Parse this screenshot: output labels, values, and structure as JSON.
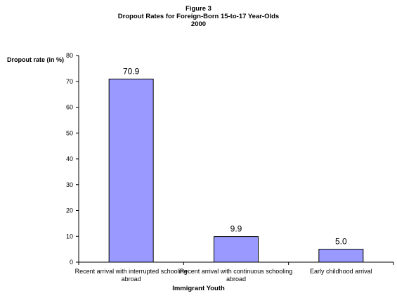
{
  "chart_data": {
    "type": "bar",
    "title_lines": [
      "Figure 3",
      "Dropout Rates for Foreign-Born 15-to-17 Year-Olds",
      "2000"
    ],
    "ylabel": "Dropout rate (in %)",
    "xlabel": "Immigrant Youth",
    "ylim": [
      0,
      80
    ],
    "yticks": [
      0,
      10,
      20,
      30,
      40,
      50,
      60,
      70,
      80
    ],
    "categories": [
      "Recent arrival with interrupted schooling abroad",
      "Recent arrival with continuous schooling abroad",
      "Early childhood arrival"
    ],
    "values": [
      70.9,
      9.9,
      5.0
    ],
    "data_labels": [
      "70.9",
      "9.9",
      "5.0"
    ],
    "bar_color": "#9999ff",
    "grid": false,
    "legend": "none"
  }
}
